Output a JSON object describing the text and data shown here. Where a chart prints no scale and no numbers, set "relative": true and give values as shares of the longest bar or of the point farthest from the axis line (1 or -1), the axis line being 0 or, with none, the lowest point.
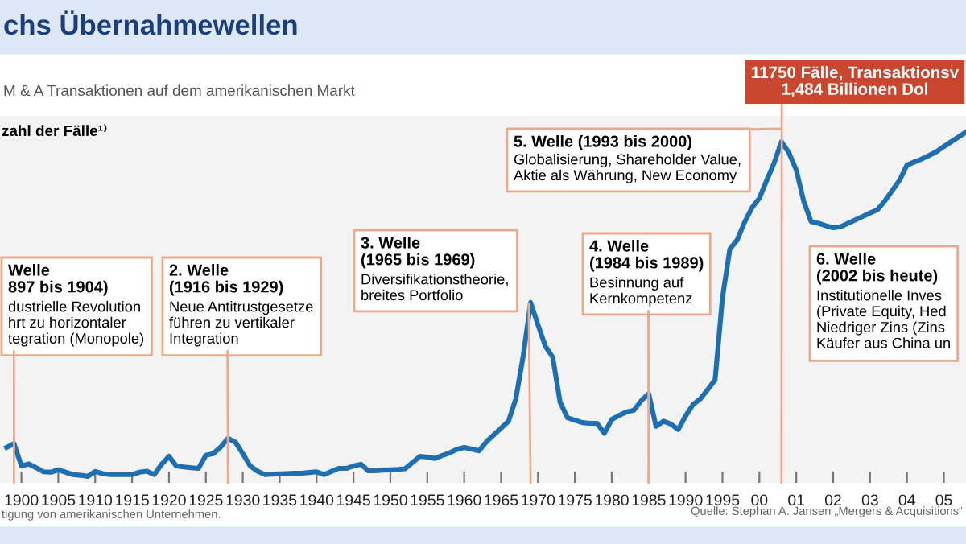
{
  "chart_data": {
    "type": "line",
    "relative": true,
    "title": "chs Übernahmewellen",
    "subtitle": "M & A Transaktionen auf dem amerikanischen Markt",
    "ylabel": "zahl der Fälle¹⁾",
    "categories": [
      null,
      null,
      "1900",
      null,
      null,
      null,
      null,
      "1905",
      null,
      null,
      null,
      null,
      "1910",
      null,
      null,
      null,
      null,
      "1915",
      null,
      null,
      null,
      null,
      "1920",
      null,
      null,
      null,
      null,
      "1925",
      null,
      null,
      null,
      null,
      "1930",
      null,
      null,
      null,
      null,
      "1935",
      null,
      null,
      null,
      null,
      "1940",
      null,
      null,
      null,
      null,
      "1945",
      null,
      null,
      null,
      null,
      "1950",
      null,
      null,
      null,
      null,
      "1955",
      null,
      null,
      null,
      null,
      "1960",
      null,
      null,
      null,
      null,
      "1965",
      null,
      null,
      null,
      null,
      "1970",
      null,
      null,
      null,
      null,
      "1975",
      null,
      null,
      null,
      null,
      "1980",
      null,
      null,
      null,
      null,
      "1985",
      null,
      null,
      null,
      null,
      "1990",
      null,
      null,
      null,
      null,
      "1995",
      null,
      null,
      null,
      null,
      "00",
      null,
      null,
      null,
      null,
      "01",
      null,
      null,
      null,
      null,
      "02",
      null,
      null,
      null,
      null,
      "03",
      null,
      null,
      null,
      null,
      "04",
      null,
      null,
      null,
      null,
      "05",
      null,
      null,
      null
    ],
    "series": [
      {
        "color": "#1f6fb0",
        "values": [
          0.084,
          0.095,
          0.03,
          0.036,
          0.025,
          0.013,
          0.012,
          0.019,
          0.012,
          0.005,
          0.003,
          0,
          0.014,
          0.008,
          0.005,
          0.005,
          0.005,
          0.005,
          0.012,
          0.015,
          0.005,
          0.035,
          0.058,
          0.03,
          0.027,
          0.025,
          0.023,
          0.061,
          0.066,
          0.085,
          0.11,
          0.099,
          0.066,
          0.03,
          0.015,
          0.005,
          0.006,
          0.007,
          0.008,
          0.009,
          0.009,
          0.011,
          0.013,
          0.005,
          0.014,
          0.023,
          0.023,
          0.03,
          0.035,
          0.016,
          0.016,
          0.018,
          0.019,
          0.02,
          0.022,
          0.04,
          0.058,
          0.056,
          0.052,
          0.06,
          0.068,
          0.078,
          0.084,
          0.079,
          0.074,
          0.1,
          0.12,
          0.14,
          0.16,
          0.225,
          0.35,
          0.505,
          0.44,
          0.378,
          0.346,
          0.215,
          0.17,
          0.163,
          0.156,
          0.154,
          0.154,
          0.125,
          0.165,
          0.177,
          0.187,
          0.192,
          0.22,
          0.24,
          0.145,
          0.16,
          0.152,
          0.136,
          0.175,
          0.208,
          0.225,
          0.252,
          0.28,
          0.519,
          0.66,
          0.687,
          0.738,
          0.78,
          0.808,
          0.86,
          0.91,
          0.972,
          0.94,
          0.89,
          0.8,
          0.74,
          0.735,
          0.728,
          0.722,
          0.725,
          0.735,
          0.745,
          0.755,
          0.765,
          0.774,
          0.8,
          0.83,
          0.86,
          0.904,
          0.913,
          0.922,
          0.932,
          0.943,
          0.958,
          0.972,
          0.986,
          1.0
        ]
      }
    ],
    "line_style": "solid",
    "annotations": [
      "Welle\n897 bis 1904)\ndustrielle Revolution\nhrt zu horizontaler\ntegration (Monopole)",
      "2. Welle\n(1916 bis 1929)\nNeue Antitrustgesetze\nführen zu vertikaler\nIntegration",
      "3. Welle\n(1965 bis 1969)\nDiversifikationstheorie,\nbreites Portfolio",
      "4. Welle\n(1984 bis 1989)\nBesinnung auf\nKernkompetenz",
      "5. Welle (1993 bis 2000)\nGlobalisierung, Shareholder Value,\nAktie als Währung, New Economy",
      "6. Welle\n(2002 bis heute)\nInstitutionelle Inves\n(Private Equity, Hed\nNiedriger Zins (Zins\nKäufer aus China un",
      "11750 Fälle, Transaktionsv\n1,484 Billionen Dol",
      "tigung von amerikanischen Unternehmen.",
      "Quelle: Stephan A. Jansen „Mergers & Acquisitions“"
    ]
  }
}
